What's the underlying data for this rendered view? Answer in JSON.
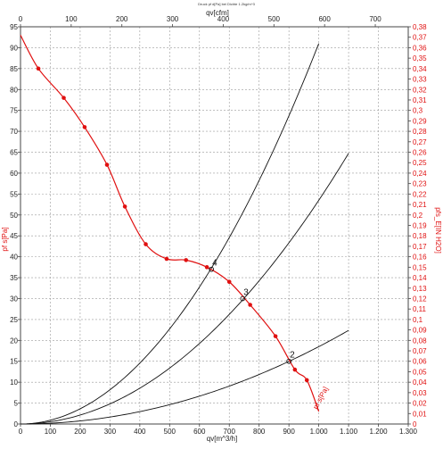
{
  "chart_data": {
    "type": "line",
    "title": "Druck pf d[Pa] bei Dichte 1.2kg/m^3",
    "xlabel_bottom": "qv[m^3/h]",
    "xlabel_top": "qv[cfm]",
    "ylabel_left": "pf s[Pa]",
    "ylabel_right": "pfs_E[IN H2O]",
    "xlim": [
      0,
      1300
    ],
    "ylim": [
      0,
      95
    ],
    "x2lim": [
      0,
      765
    ],
    "y2lim": [
      0,
      0.38
    ],
    "xticks": [
      "0",
      "100",
      "200",
      "300",
      "400",
      "500",
      "600",
      "700",
      "800",
      "900",
      "1.000",
      "1.100",
      "1.200",
      "1.300"
    ],
    "yticks": [
      "0",
      "5",
      "10",
      "15",
      "20",
      "25",
      "30",
      "35",
      "40",
      "45",
      "50",
      "55",
      "60",
      "65",
      "70",
      "75",
      "80",
      "85",
      "90",
      "95"
    ],
    "x2ticks": [
      "0",
      "100",
      "200",
      "300",
      "400",
      "500",
      "600",
      "700"
    ],
    "y2ticks": [
      "0",
      "0,01",
      "0,02",
      "0,03",
      "0,04",
      "0,05",
      "0,06",
      "0,07",
      "0,08",
      "0,09",
      "0,1",
      "0,11",
      "0,12",
      "0,13",
      "0,14",
      "0,15",
      "0,16",
      "0,17",
      "0,18",
      "0,19",
      "0,2",
      "0,21",
      "0,22",
      "0,23",
      "0,24",
      "0,25",
      "0,26",
      "0,27",
      "0,28",
      "0,29",
      "0,3",
      "0,31",
      "0,32",
      "0,33",
      "0,34",
      "0,35",
      "0,36",
      "0,37",
      "0,38"
    ],
    "grid": true,
    "fan_curve": {
      "name": "pf s[Pa]",
      "color": "#e01010",
      "x": [
        0,
        60,
        145,
        215,
        290,
        350,
        420,
        490,
        555,
        625,
        700,
        770,
        855,
        920,
        960,
        1000
      ],
      "y": [
        93,
        85,
        78,
        71,
        62,
        52,
        43,
        39.5,
        39.2,
        37.5,
        34,
        28.5,
        21,
        13,
        10.5,
        3
      ]
    },
    "fan_markers": {
      "x": [
        60,
        145,
        215,
        290,
        350,
        420,
        490,
        555,
        625,
        700,
        770,
        855,
        920,
        960
      ],
      "y": [
        85,
        78,
        71,
        62,
        52,
        43,
        39.5,
        39.2,
        37.5,
        34,
        28.5,
        21,
        13,
        10.5
      ]
    },
    "system_curves": [
      {
        "label": "4",
        "k": 9.1e-05,
        "xmax": 1000
      },
      {
        "label": "3",
        "k": 5.35e-05,
        "xmax": 1100
      },
      {
        "label": "2",
        "k": 1.85e-05,
        "xmax": 1100
      }
    ],
    "operating_points": [
      {
        "label": "4",
        "x": 640,
        "y": 37
      },
      {
        "label": "3",
        "x": 745,
        "y": 30
      },
      {
        "label": "2",
        "x": 900,
        "y": 15
      }
    ],
    "end_label": "pf s[Pa]"
  }
}
